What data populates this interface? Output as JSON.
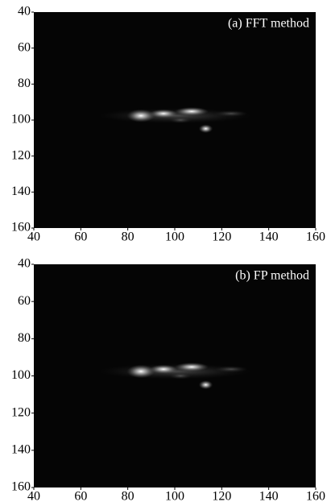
{
  "chart_data": [
    {
      "type": "image",
      "annotation": "(a) FFT method",
      "xlim": [
        40,
        160
      ],
      "ylim": [
        40,
        160
      ],
      "y_reversed": true,
      "xticks": [
        40,
        60,
        80,
        100,
        120,
        140,
        160
      ],
      "yticks": [
        40,
        60,
        80,
        100,
        120,
        140,
        160
      ]
    },
    {
      "type": "image",
      "annotation": "(b) FP method",
      "xlim": [
        40,
        160
      ],
      "ylim": [
        40,
        160
      ],
      "y_reversed": true,
      "xticks": [
        40,
        60,
        80,
        100,
        120,
        140,
        160
      ],
      "yticks": [
        40,
        60,
        80,
        100,
        120,
        140,
        160
      ]
    }
  ]
}
